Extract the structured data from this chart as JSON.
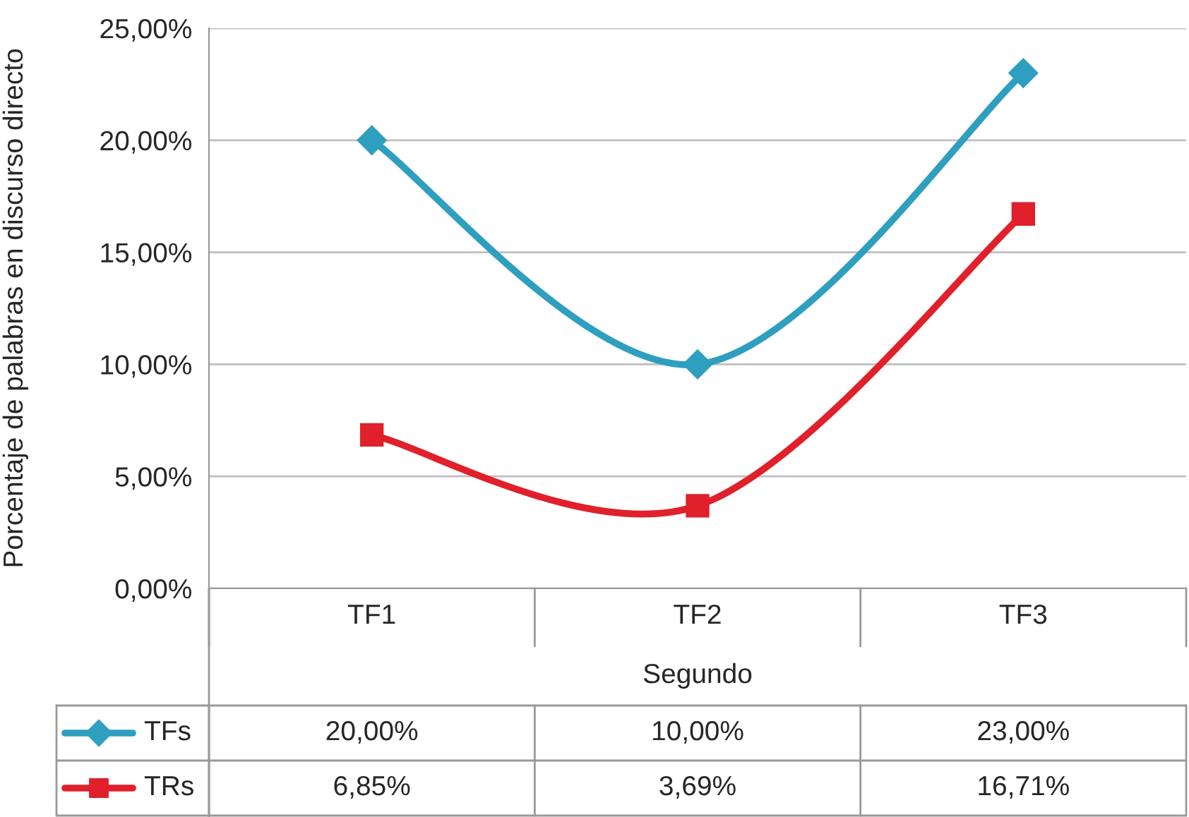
{
  "chart_data": {
    "type": "line",
    "xlabel": "Segundo",
    "ylabel": "Porcentaje de palabras en discurso directo",
    "categories": [
      "TF1",
      "TF2",
      "TF3"
    ],
    "series": [
      {
        "name": "TFs",
        "color": "#2f9fc0",
        "marker": "diamond",
        "values": [
          20,
          10,
          23
        ],
        "value_labels": [
          "20,00%",
          "10,00%",
          "23,00%"
        ]
      },
      {
        "name": "TRs",
        "color": "#e0202a",
        "marker": "square",
        "values": [
          6.85,
          3.69,
          16.71
        ],
        "value_labels": [
          "6,85%",
          "3,69%",
          "16,71%"
        ]
      }
    ],
    "ylim": [
      0,
      25
    ],
    "yticks": [
      {
        "value": 0,
        "label": "0,00%"
      },
      {
        "value": 5,
        "label": "5,00%"
      },
      {
        "value": 10,
        "label": "10,00%"
      },
      {
        "value": 15,
        "label": "15,00%"
      },
      {
        "value": 20,
        "label": "20,00%"
      },
      {
        "value": 25,
        "label": "25,00%"
      }
    ],
    "grid": "y",
    "legend": "bottom",
    "line_style": "solid"
  }
}
